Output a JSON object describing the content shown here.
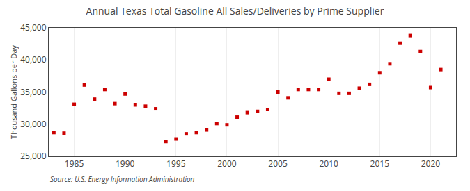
{
  "chart_data": {
    "type": "scatter",
    "title": "Annual Texas Total Gasoline All Sales/Deliveries by Prime Supplier",
    "ylabel": "Thousand Gallons per Day",
    "source": "Source: U.S. Energy Information Administration",
    "color": "#cc0000",
    "marker": "square",
    "grid": true,
    "xlim": [
      1982.5,
      2022.5
    ],
    "ylim": [
      25000,
      45000
    ],
    "xticks": [
      1985,
      1990,
      1995,
      2000,
      2005,
      2010,
      2015,
      2020
    ],
    "yticks": [
      {
        "value": 25000,
        "label": "25,000"
      },
      {
        "value": 30000,
        "label": "30,000"
      },
      {
        "value": 35000,
        "label": "35,000"
      },
      {
        "value": 40000,
        "label": "40,000"
      },
      {
        "value": 45000,
        "label": "45,000"
      }
    ],
    "x": [
      1983,
      1984,
      1985,
      1986,
      1987,
      1988,
      1989,
      1990,
      1991,
      1992,
      1993,
      1994,
      1995,
      1996,
      1997,
      1998,
      1999,
      2000,
      2001,
      2002,
      2003,
      2004,
      2005,
      2006,
      2007,
      2008,
      2009,
      2010,
      2011,
      2012,
      2013,
      2014,
      2015,
      2016,
      2017,
      2018,
      2019,
      2020,
      2021
    ],
    "values": [
      28700,
      28600,
      33100,
      36100,
      33900,
      35400,
      33200,
      34700,
      33000,
      32800,
      32400,
      27300,
      27700,
      28500,
      28700,
      29100,
      30100,
      29900,
      31100,
      31800,
      32000,
      32300,
      35000,
      34100,
      35400,
      35400,
      35400,
      37000,
      34800,
      34800,
      35600,
      36200,
      38000,
      39400,
      42600,
      43800,
      41300,
      35700,
      38500
    ]
  }
}
